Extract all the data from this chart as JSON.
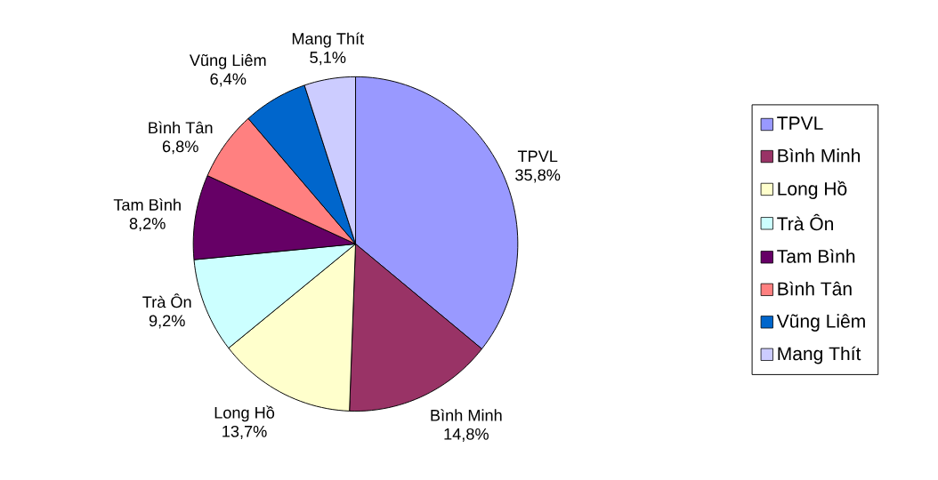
{
  "chart_data": {
    "type": "pie",
    "categories": [
      "TPVL",
      "Bình Minh",
      "Long Hồ",
      "Trà Ôn",
      "Tam Bình",
      "Bình Tân",
      "Vũng Liêm",
      "Mang Thít"
    ],
    "values": [
      35.8,
      14.8,
      13.7,
      9.2,
      8.2,
      6.8,
      6.4,
      5.1
    ],
    "value_labels": [
      "35,8%",
      "14,8%",
      "13,7%",
      "9,2%",
      "8,2%",
      "6,8%",
      "6,4%",
      "5,1%"
    ],
    "colors": [
      "#9999ff",
      "#993366",
      "#ffffcc",
      "#ccffff",
      "#660066",
      "#ff8080",
      "#0066cc",
      "#ccccff"
    ],
    "legend": "right"
  }
}
